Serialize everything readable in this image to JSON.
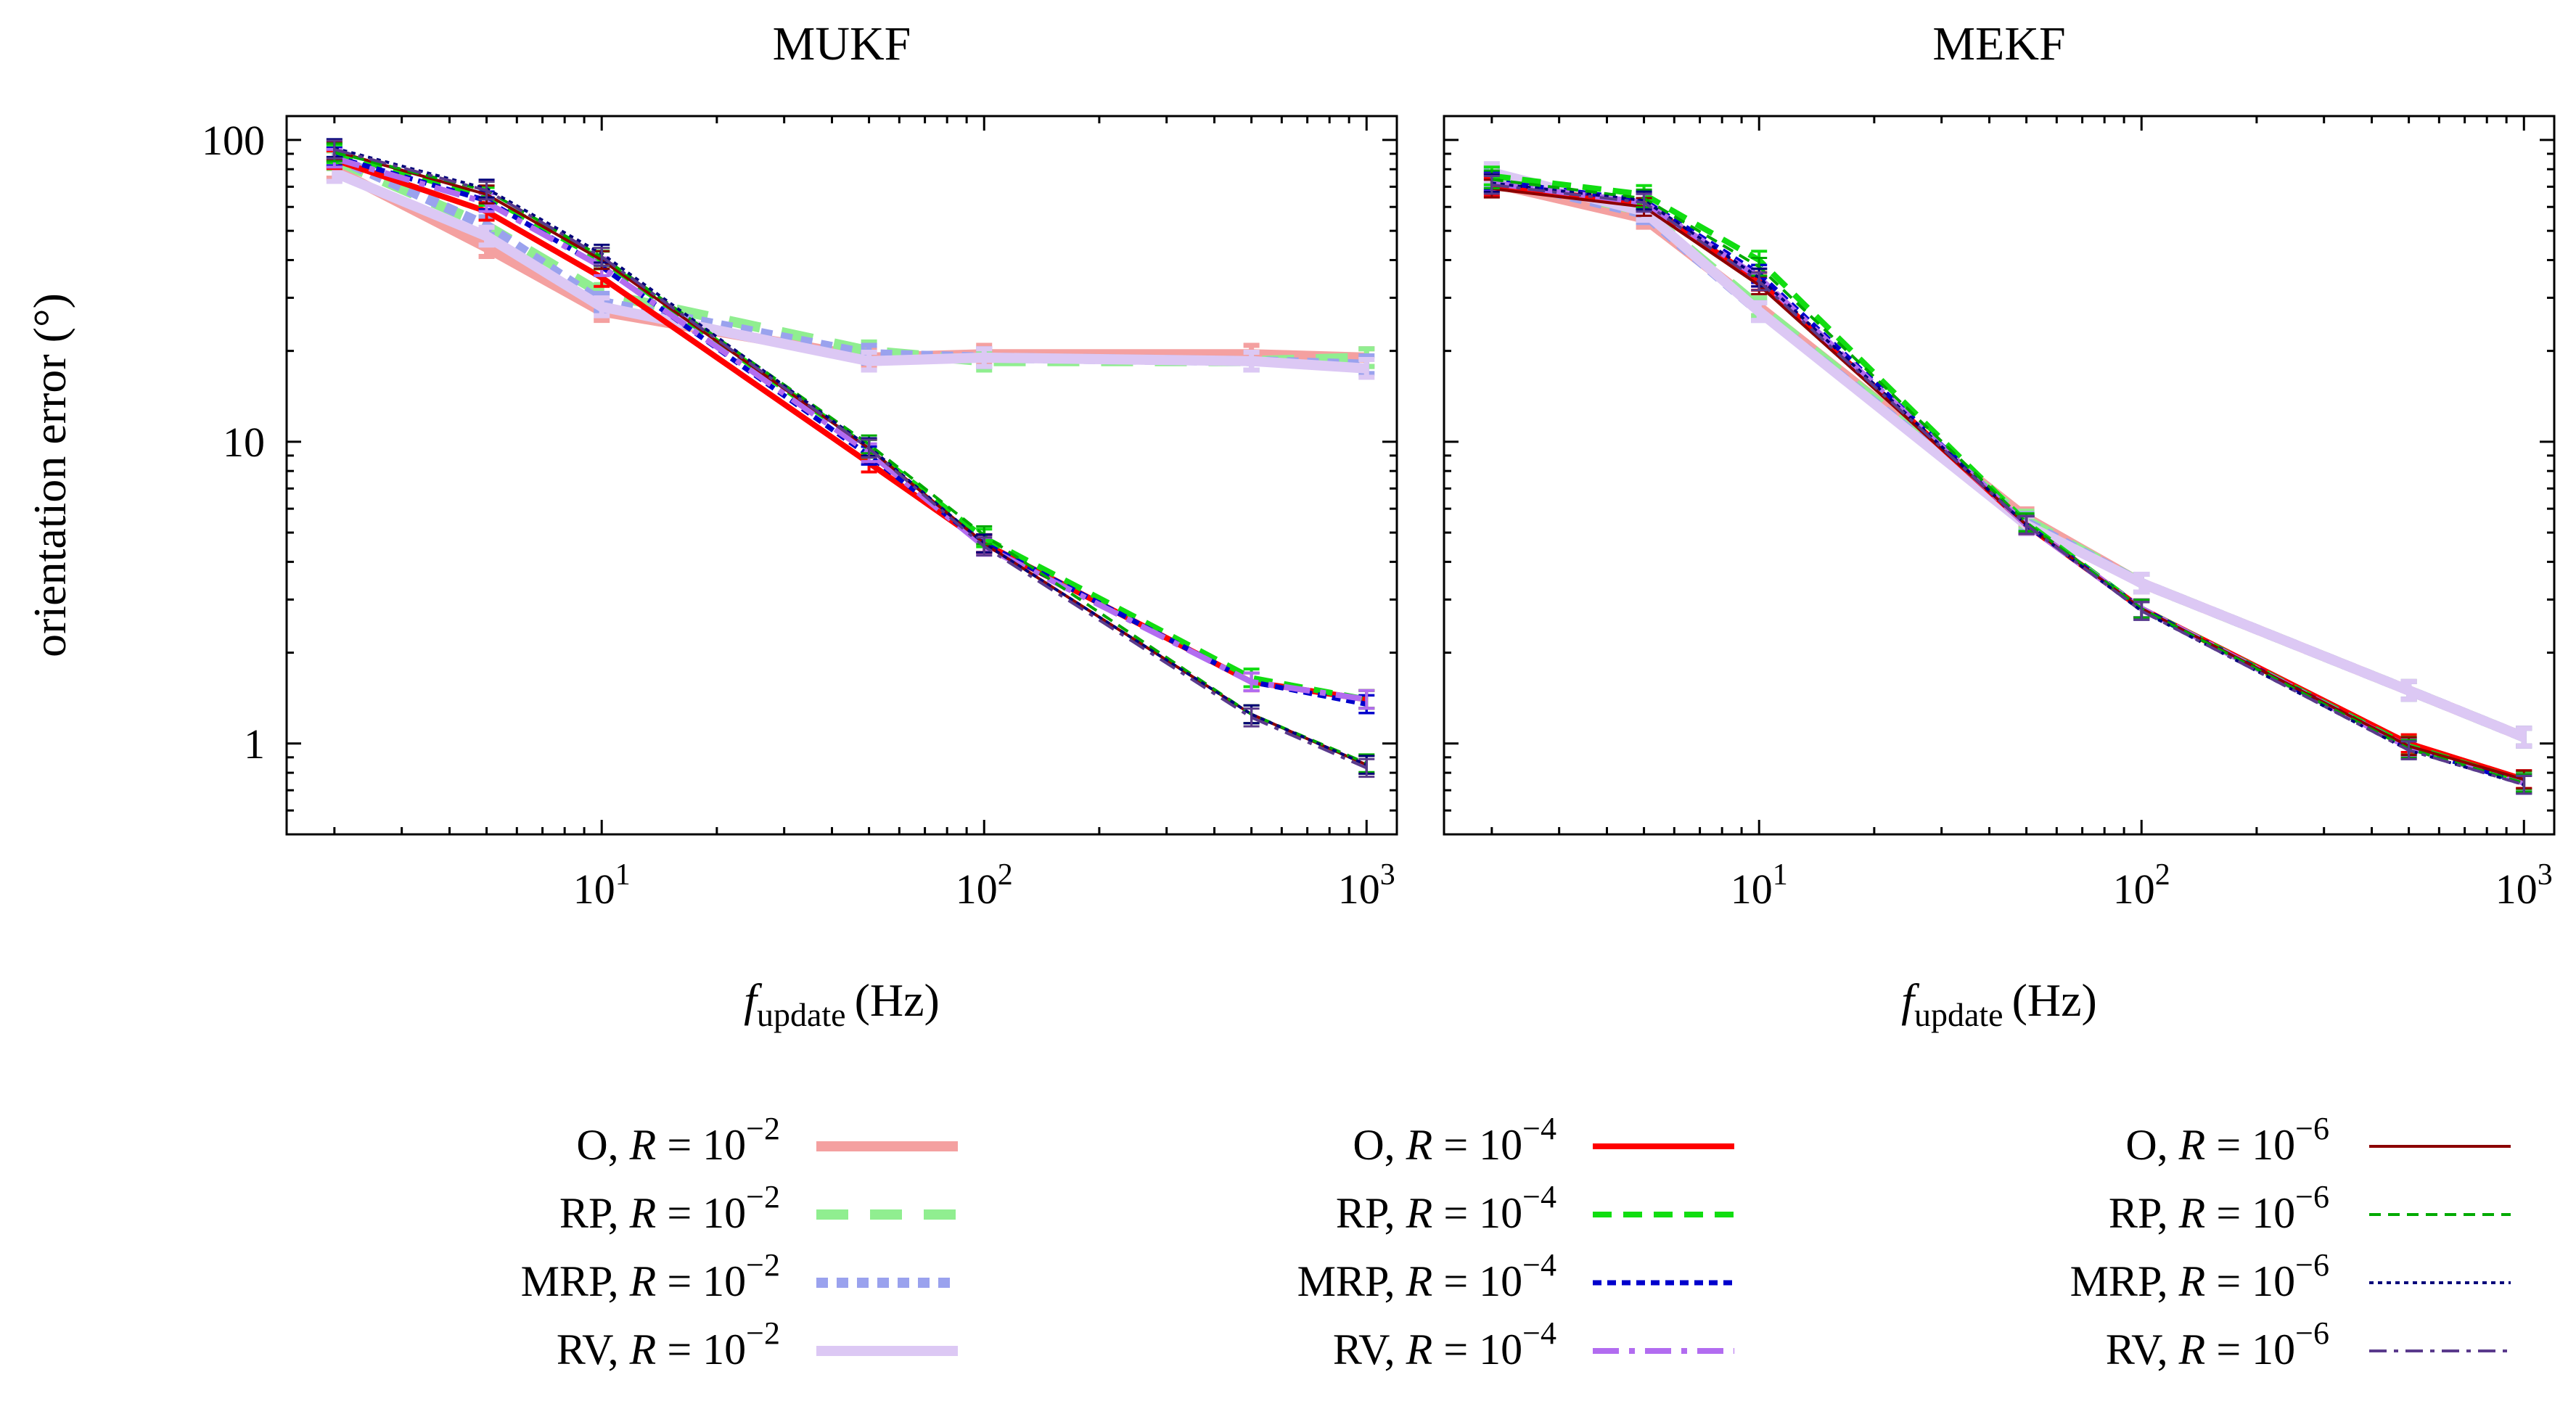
{
  "figure": {
    "ylabel": "orientation error (°)",
    "xlabel_base": "f",
    "xlabel_sub": "update",
    "xlabel_unit": "(Hz)"
  },
  "chart_data": [
    {
      "type": "line",
      "title": "MUKF",
      "xlabel": "f_update (Hz)",
      "ylabel": "orientation error (°)",
      "xscale": "log",
      "yscale": "log",
      "xlim": [
        1.5,
        1200
      ],
      "ylim": [
        0.5,
        120
      ],
      "xticks": [
        {
          "v": 10,
          "base": "10",
          "exp": "1"
        },
        {
          "v": 100,
          "base": "10",
          "exp": "2"
        },
        {
          "v": 1000,
          "base": "10",
          "exp": "3"
        }
      ],
      "yticks": [
        {
          "v": 1,
          "label": "1"
        },
        {
          "v": 10,
          "label": "10"
        },
        {
          "v": 100,
          "label": "100"
        }
      ],
      "x": [
        2,
        5,
        10,
        50,
        100,
        500,
        1000
      ],
      "series": [
        {
          "name": "O, R = 10^-2",
          "values": [
            80,
            44,
            27,
            19,
            19.5,
            19.5,
            19
          ]
        },
        {
          "name": "RP, R = 10^-2",
          "values": [
            86,
            52,
            31,
            20,
            18.5,
            18.5,
            19
          ]
        },
        {
          "name": "MRP, R = 10^-2",
          "values": [
            88,
            52,
            29,
            19.5,
            19,
            18.5,
            18
          ]
        },
        {
          "name": "RV, R = 10^-2",
          "values": [
            78,
            48,
            28,
            18.5,
            19,
            18.5,
            17.5
          ]
        },
        {
          "name": "O, R = 10^-4",
          "values": [
            86,
            58,
            35,
            8.5,
            4.6,
            1.6,
            1.4
          ]
        },
        {
          "name": "RP, R = 10^-4",
          "values": [
            90,
            65,
            40,
            9.5,
            4.8,
            1.65,
            1.4
          ]
        },
        {
          "name": "MRP, R = 10^-4",
          "values": [
            88,
            63,
            38,
            9,
            4.6,
            1.6,
            1.35
          ]
        },
        {
          "name": "RV, R = 10^-4",
          "values": [
            87,
            62,
            38,
            9.2,
            4.5,
            1.6,
            1.4
          ]
        },
        {
          "name": "O, R = 10^-6",
          "values": [
            92,
            66,
            40,
            9.5,
            4.6,
            1.25,
            0.85
          ]
        },
        {
          "name": "RP, R = 10^-6",
          "values": [
            91,
            68,
            41,
            9.8,
            4.9,
            1.25,
            0.86
          ]
        },
        {
          "name": "MRP, R = 10^-6",
          "values": [
            94,
            69,
            42,
            9.6,
            4.6,
            1.25,
            0.85
          ]
        },
        {
          "name": "RV, R = 10^-6",
          "values": [
            93,
            68,
            41,
            9.5,
            4.5,
            1.22,
            0.83
          ]
        }
      ]
    },
    {
      "type": "line",
      "title": "MEKF",
      "xlabel": "f_update (Hz)",
      "ylabel": "",
      "xscale": "log",
      "yscale": "log",
      "xlim": [
        1.5,
        1200
      ],
      "ylim": [
        0.5,
        120
      ],
      "xticks": [
        {
          "v": 10,
          "base": "10",
          "exp": "1"
        },
        {
          "v": 100,
          "base": "10",
          "exp": "2"
        },
        {
          "v": 1000,
          "base": "10",
          "exp": "3"
        }
      ],
      "yticks": [],
      "x": [
        2,
        5,
        10,
        50,
        100,
        500,
        1000
      ],
      "series": [
        {
          "name": "O, R = 10^-2",
          "values": [
            72,
            55,
            28,
            5.6,
            3.4,
            1.5,
            1.05
          ]
        },
        {
          "name": "RP, R = 10^-2",
          "values": [
            76,
            58,
            28,
            5.5,
            3.4,
            1.5,
            1.05
          ]
        },
        {
          "name": "MRP, R = 10^-2",
          "values": [
            75,
            57,
            27,
            5.4,
            3.4,
            1.5,
            1.05
          ]
        },
        {
          "name": "RV, R = 10^-2",
          "values": [
            78,
            58,
            27,
            5.3,
            3.4,
            1.5,
            1.05
          ]
        },
        {
          "name": "O, R = 10^-4",
          "values": [
            70,
            62,
            34,
            5.3,
            2.8,
            1.0,
            0.76
          ]
        },
        {
          "name": "RP, R = 10^-4",
          "values": [
            76,
            66,
            40,
            5.4,
            2.8,
            0.98,
            0.75
          ]
        },
        {
          "name": "MRP, R = 10^-4",
          "values": [
            73,
            63,
            36,
            5.3,
            2.8,
            0.97,
            0.74
          ]
        },
        {
          "name": "RV, R = 10^-4",
          "values": [
            72,
            62,
            35,
            5.3,
            2.8,
            0.97,
            0.74
          ]
        },
        {
          "name": "O, R = 10^-6",
          "values": [
            69,
            60,
            33,
            5.3,
            2.8,
            0.98,
            0.76
          ]
        },
        {
          "name": "RP, R = 10^-6",
          "values": [
            74,
            64,
            38,
            5.4,
            2.8,
            0.96,
            0.74
          ]
        },
        {
          "name": "MRP, R = 10^-6",
          "values": [
            72,
            63,
            35,
            5.3,
            2.75,
            0.95,
            0.73
          ]
        },
        {
          "name": "RV, R = 10^-6",
          "values": [
            71,
            62,
            34,
            5.3,
            2.75,
            0.95,
            0.73
          ]
        }
      ]
    }
  ],
  "legend": [
    {
      "label": "O",
      "base": "10",
      "exp": "−2",
      "color": "#f4a0a0",
      "style": "solid-thick"
    },
    {
      "label": "RP",
      "base": "10",
      "exp": "−2",
      "color": "#90ee90",
      "style": "dash-thick"
    },
    {
      "label": "MRP",
      "base": "10",
      "exp": "−2",
      "color": "#9aa2ee",
      "style": "dot-thick"
    },
    {
      "label": "RV",
      "base": "10",
      "exp": "−2",
      "color": "#dcc8f4",
      "style": "solid-thick"
    },
    {
      "label": "O",
      "base": "10",
      "exp": "−4",
      "color": "#ff0000",
      "style": "solid-med"
    },
    {
      "label": "RP",
      "base": "10",
      "exp": "−4",
      "color": "#11dd11",
      "style": "dash-med"
    },
    {
      "label": "MRP",
      "base": "10",
      "exp": "−4",
      "color": "#0000cc",
      "style": "dot-med"
    },
    {
      "label": "RV",
      "base": "10",
      "exp": "−4",
      "color": "#b26cf0",
      "style": "dashdot-med"
    },
    {
      "label": "O",
      "base": "10",
      "exp": "−6",
      "color": "#8b0000",
      "style": "solid-thin"
    },
    {
      "label": "RP",
      "base": "10",
      "exp": "−6",
      "color": "#00aa00",
      "style": "dash-thin"
    },
    {
      "label": "MRP",
      "base": "10",
      "exp": "−6",
      "color": "#00007a",
      "style": "dot-thin"
    },
    {
      "label": "RV",
      "base": "10",
      "exp": "−6",
      "color": "#5a3a8c",
      "style": "dashdot-thin"
    }
  ],
  "legend_r_symbol": "R ="
}
